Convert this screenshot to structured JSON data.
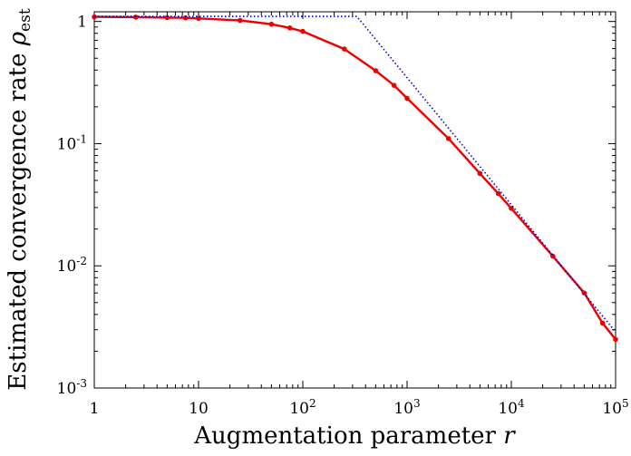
{
  "chart_data": {
    "type": "line",
    "title": "",
    "xlabel": "Augmentation parameter r",
    "ylabel": "Estimated convergence rate ρest",
    "xscale": "log",
    "yscale": "log",
    "xlim": [
      1,
      100000
    ],
    "ylim": [
      0.001,
      1.2
    ],
    "grid": false,
    "legend": "none",
    "xticks": [
      {
        "value": 1,
        "label": "1"
      },
      {
        "value": 10,
        "label": "10"
      },
      {
        "value": 100,
        "label": "10^2"
      },
      {
        "value": 1000,
        "label": "10^3"
      },
      {
        "value": 10000,
        "label": "10^4"
      },
      {
        "value": 100000,
        "label": "10^5"
      }
    ],
    "yticks": [
      {
        "value": 0.001,
        "label": "10^-3"
      },
      {
        "value": 0.01,
        "label": "10^-2"
      },
      {
        "value": 0.1,
        "label": "10^-1"
      },
      {
        "value": 1,
        "label": "1"
      }
    ],
    "series": [
      {
        "style": "solid",
        "marker": "dot",
        "color": "#ee0000",
        "x": [
          1,
          2.5,
          5,
          7.5,
          10,
          25,
          50,
          75,
          100,
          250,
          500,
          750,
          1000,
          2500,
          5000,
          7500,
          10000,
          25000,
          50000,
          75000,
          100000
        ],
        "y": [
          1.09,
          1.085,
          1.075,
          1.07,
          1.06,
          1.02,
          0.95,
          0.885,
          0.83,
          0.595,
          0.395,
          0.3,
          0.235,
          0.11,
          0.057,
          0.039,
          0.0295,
          0.012,
          0.006,
          0.0034,
          0.0025
        ]
      },
      {
        "style": "dotted",
        "marker": "none",
        "color": "#0000cc",
        "x": [
          1,
          330,
          100000
        ],
        "y": [
          1.1,
          1.1,
          0.00288
        ]
      }
    ]
  }
}
